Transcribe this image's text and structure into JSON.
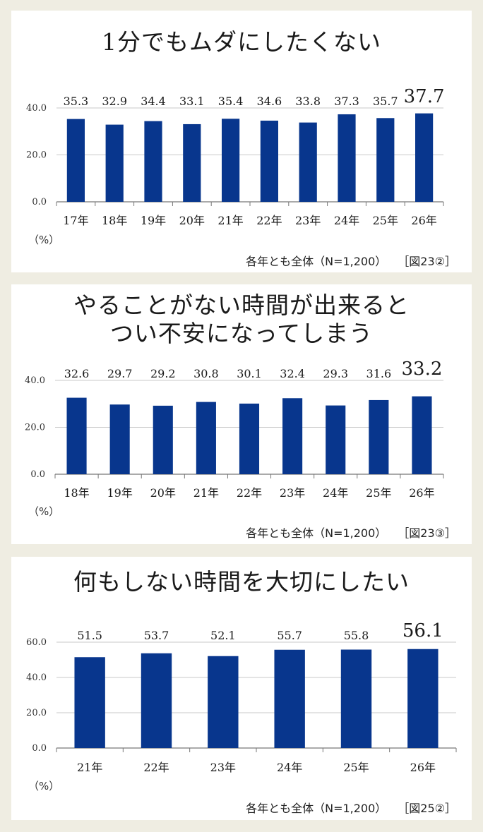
{
  "charts": [
    {
      "title_lines": [
        "1分でもムダにしたくない"
      ],
      "unit": "（%）",
      "note": "各年とも全体（N=1,200）",
      "figure_ref": "［図23②］",
      "chart_data": {
        "type": "bar",
        "categories": [
          "17年",
          "18年",
          "19年",
          "20年",
          "21年",
          "22年",
          "23年",
          "24年",
          "25年",
          "26年"
        ],
        "values": [
          35.3,
          32.9,
          34.4,
          33.1,
          35.4,
          34.6,
          33.8,
          37.3,
          35.7,
          37.7
        ],
        "value_labels": [
          "35.3",
          "32.9",
          "34.4",
          "33.1",
          "35.4",
          "34.6",
          "33.8",
          "37.3",
          "35.7",
          "37.7"
        ],
        "y_ticks": [
          "0.0",
          "20.0",
          "40.0"
        ],
        "ylim": [
          0,
          40
        ],
        "bar_color": "#08368d",
        "highlight_last": true,
        "grid": true
      }
    },
    {
      "title_lines": [
        "やることがない時間が出来ると",
        "つい不安になってしまう"
      ],
      "unit": "（%）",
      "note": "各年とも全体（N=1,200）",
      "figure_ref": "［図23③］",
      "chart_data": {
        "type": "bar",
        "categories": [
          "18年",
          "19年",
          "20年",
          "21年",
          "22年",
          "23年",
          "24年",
          "25年",
          "26年"
        ],
        "values": [
          32.6,
          29.7,
          29.2,
          30.8,
          30.1,
          32.4,
          29.3,
          31.6,
          33.2
        ],
        "value_labels": [
          "32.6",
          "29.7",
          "29.2",
          "30.8",
          "30.1",
          "32.4",
          "29.3",
          "31.6",
          "33.2"
        ],
        "y_ticks": [
          "0.0",
          "20.0",
          "40.0"
        ],
        "ylim": [
          0,
          40
        ],
        "bar_color": "#08368d",
        "highlight_last": true,
        "grid": true
      }
    },
    {
      "title_lines": [
        "何もしない時間を大切にしたい"
      ],
      "unit": "（%）",
      "note": "各年とも全体（N=1,200）",
      "figure_ref": "［図25②］",
      "chart_data": {
        "type": "bar",
        "categories": [
          "21年",
          "22年",
          "23年",
          "24年",
          "25年",
          "26年"
        ],
        "values": [
          51.5,
          53.7,
          52.1,
          55.7,
          55.8,
          56.1
        ],
        "value_labels": [
          "51.5",
          "53.7",
          "52.1",
          "55.7",
          "55.8",
          "56.1"
        ],
        "y_ticks": [
          "0.0",
          "20.0",
          "40.0",
          "60.0"
        ],
        "ylim": [
          0,
          60
        ],
        "bar_color": "#08368d",
        "highlight_last": true,
        "grid": true
      }
    }
  ]
}
